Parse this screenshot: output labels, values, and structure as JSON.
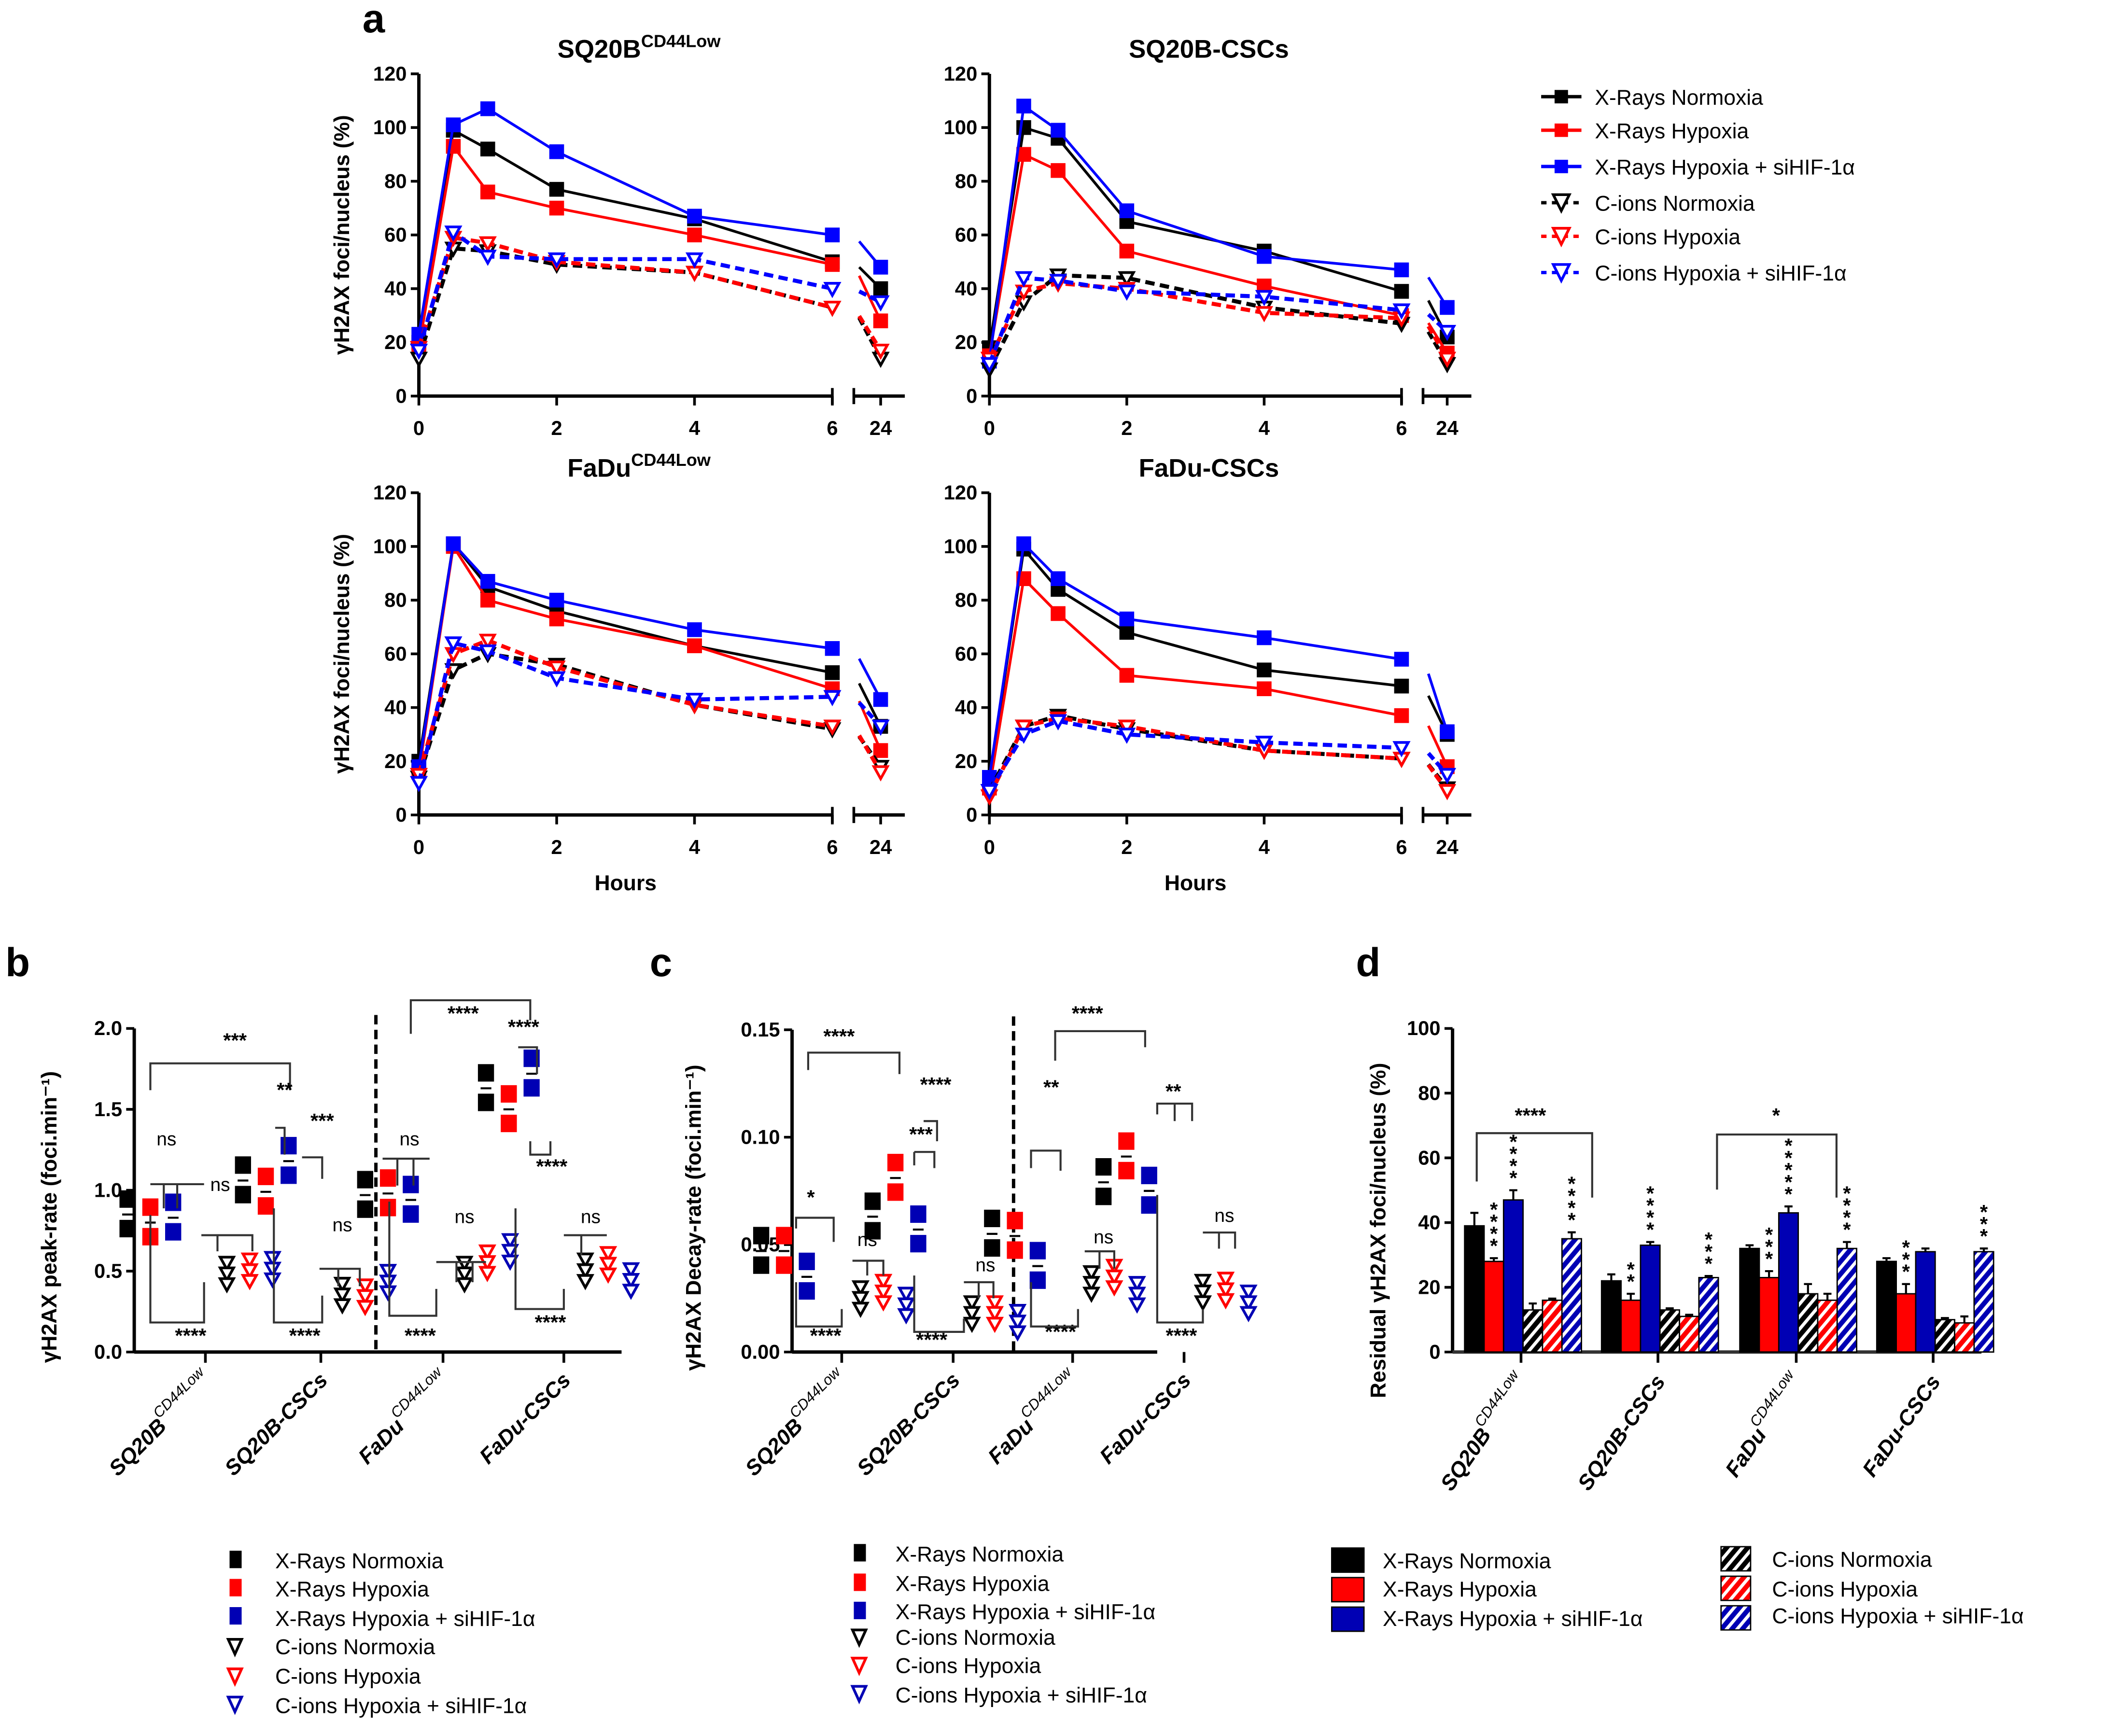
{
  "figure": {
    "panel_labels": [
      "a",
      "b",
      "c",
      "d"
    ],
    "colors": {
      "x_normoxia": "#000000",
      "x_hypoxia": "#ff0000",
      "x_sihif": "#0000ff",
      "c_normoxia": "#000000",
      "c_hypoxia": "#ff0000",
      "c_sihif": "#0000ff",
      "dot_blue": "#0000b4"
    }
  },
  "legend_a": [
    "X-Rays Normoxia",
    "X-Rays Hypoxia",
    "X-Rays Hypoxia + siHIF-1α",
    "C-ions Normoxia",
    "C-ions Hypoxia",
    "C-ions Hypoxia + siHIF-1α"
  ],
  "legend_b": [
    "X-Rays Normoxia",
    "X-Rays Hypoxia",
    "X-Rays Hypoxia + siHIF-1α",
    "C-ions Normoxia",
    "C-ions Hypoxia",
    "C-ions Hypoxia + siHIF-1α"
  ],
  "legend_c": [
    "X-Rays Normoxia",
    "X-Rays Hypoxia",
    "X-Rays Hypoxia + siHIF-1α",
    "C-ions Normoxia",
    "C-ions Hypoxia",
    "C-ions Hypoxia + siHIF-1α"
  ],
  "legend_d": [
    "X-Rays Normoxia",
    "X-Rays Hypoxia",
    "X-Rays Hypoxia + siHIF-1α",
    "C-ions Normoxia",
    "C-ions Hypoxia",
    "C-ions Hypoxia + siHIF-1α"
  ],
  "chart_data": [
    {
      "id": "a1",
      "type": "line",
      "title": "SQ20B",
      "title_sup": "CD44Low",
      "xlabel": "",
      "ylabel": "γH2AX foci/nucleus (%)",
      "x": [
        0,
        0.5,
        1,
        2,
        4,
        6,
        24
      ],
      "x_ticks": [
        "0",
        "2",
        "4",
        "6",
        "24"
      ],
      "ylim": [
        0,
        120
      ],
      "y_ticks": [
        0,
        20,
        40,
        60,
        80,
        100,
        120
      ],
      "x_axis_break": "between 6 and 24",
      "series": [
        {
          "name": "X-Rays Normoxia",
          "values": [
            20,
            99,
            92,
            77,
            66,
            50,
            40
          ]
        },
        {
          "name": "X-Rays Hypoxia",
          "values": [
            18,
            93,
            76,
            70,
            60,
            49,
            28
          ]
        },
        {
          "name": "X-Rays Hypoxia + siHIF-1α",
          "values": [
            23,
            101,
            107,
            91,
            67,
            60,
            48
          ]
        },
        {
          "name": "C-ions Normoxia",
          "values": [
            14,
            55,
            54,
            49,
            46,
            33,
            14
          ]
        },
        {
          "name": "C-ions Hypoxia",
          "values": [
            18,
            59,
            57,
            50,
            46,
            33,
            17
          ]
        },
        {
          "name": "C-ions Hypoxia + siHIF-1α",
          "values": [
            17,
            61,
            52,
            51,
            51,
            40,
            35
          ]
        }
      ]
    },
    {
      "id": "a2",
      "type": "line",
      "title": "SQ20B-CSCs",
      "title_sup": "",
      "xlabel": "",
      "ylabel": "",
      "x": [
        0,
        0.5,
        1,
        2,
        4,
        6,
        24
      ],
      "x_ticks": [
        "0",
        "2",
        "4",
        "6",
        "24"
      ],
      "ylim": [
        0,
        120
      ],
      "y_ticks": [
        0,
        20,
        40,
        60,
        80,
        100,
        120
      ],
      "x_axis_break": "between 6 and 24",
      "series": [
        {
          "name": "X-Rays Normoxia",
          "values": [
            18,
            100,
            96,
            65,
            54,
            39,
            22
          ]
        },
        {
          "name": "X-Rays Hypoxia",
          "values": [
            15,
            90,
            84,
            54,
            41,
            30,
            16
          ]
        },
        {
          "name": "X-Rays Hypoxia + siHIF-1α",
          "values": [
            13,
            108,
            99,
            69,
            52,
            47,
            33
          ]
        },
        {
          "name": "C-ions Normoxia",
          "values": [
            10,
            35,
            45,
            44,
            33,
            27,
            12
          ]
        },
        {
          "name": "C-ions Hypoxia",
          "values": [
            14,
            39,
            42,
            40,
            31,
            29,
            14
          ]
        },
        {
          "name": "C-ions Hypoxia + siHIF-1α",
          "values": [
            12,
            44,
            43,
            39,
            37,
            32,
            24
          ]
        }
      ]
    },
    {
      "id": "a3",
      "type": "line",
      "title": "FaDu",
      "title_sup": "CD44Low",
      "xlabel": "Hours",
      "ylabel": "γH2AX foci/nucleus (%)",
      "x": [
        0,
        0.5,
        1,
        2,
        4,
        6,
        24
      ],
      "x_ticks": [
        "0",
        "2",
        "4",
        "6",
        "24"
      ],
      "ylim": [
        0,
        120
      ],
      "y_ticks": [
        0,
        20,
        40,
        60,
        80,
        100,
        120
      ],
      "x_axis_break": "between 6 and 24",
      "series": [
        {
          "name": "X-Rays Normoxia",
          "values": [
            20,
            101,
            85,
            76,
            63,
            53,
            33
          ]
        },
        {
          "name": "X-Rays Hypoxia",
          "values": [
            16,
            100,
            80,
            73,
            63,
            47,
            24
          ]
        },
        {
          "name": "X-Rays Hypoxia + siHIF-1α",
          "values": [
            18,
            101,
            87,
            80,
            69,
            62,
            43
          ]
        },
        {
          "name": "C-ions Normoxia",
          "values": [
            14,
            54,
            60,
            56,
            41,
            32,
            18
          ]
        },
        {
          "name": "C-ions Hypoxia",
          "values": [
            15,
            60,
            65,
            55,
            41,
            33,
            16
          ]
        },
        {
          "name": "C-ions Hypoxia + siHIF-1α",
          "values": [
            12,
            64,
            61,
            51,
            43,
            44,
            33
          ]
        }
      ]
    },
    {
      "id": "a4",
      "type": "line",
      "title": "FaDu-CSCs",
      "title_sup": "",
      "xlabel": "Hours",
      "ylabel": "",
      "x": [
        0,
        0.5,
        1,
        2,
        4,
        6,
        24
      ],
      "x_ticks": [
        "0",
        "2",
        "4",
        "6",
        "24"
      ],
      "ylim": [
        0,
        120
      ],
      "y_ticks": [
        0,
        20,
        40,
        60,
        80,
        100,
        120
      ],
      "x_axis_break": "between 6 and 24",
      "series": [
        {
          "name": "X-Rays Normoxia",
          "values": [
            13,
            99,
            84,
            68,
            54,
            48,
            30
          ]
        },
        {
          "name": "X-Rays Hypoxia",
          "values": [
            10,
            88,
            75,
            52,
            47,
            37,
            18
          ]
        },
        {
          "name": "X-Rays Hypoxia + siHIF-1α",
          "values": [
            14,
            101,
            88,
            73,
            66,
            58,
            31
          ]
        },
        {
          "name": "C-ions Normoxia",
          "values": [
            9,
            33,
            37,
            32,
            24,
            21,
            10
          ]
        },
        {
          "name": "C-ions Hypoxia",
          "values": [
            7,
            33,
            36,
            33,
            24,
            21,
            9
          ]
        },
        {
          "name": "C-ions Hypoxia + siHIF-1α",
          "values": [
            9,
            30,
            35,
            30,
            27,
            25,
            15
          ]
        }
      ]
    },
    {
      "id": "b",
      "type": "scatter",
      "title": "",
      "ylabel": "γH2AX peak-rate (foci.min⁻¹)",
      "ylim": [
        0,
        2.0
      ],
      "y_ticks": [
        "0.0",
        "0.5",
        "1.0",
        "1.5",
        "2.0"
      ],
      "categories": [
        "SQ20B",
        "SQ20B-CSCs",
        "FaDu",
        "FaDu-CSCs"
      ],
      "category_sups": [
        "CD44Low",
        "",
        "CD44Low",
        ""
      ],
      "series": [
        {
          "name": "X-Rays Normoxia",
          "values": [
            0.85,
            1.06,
            0.97,
            1.63
          ]
        },
        {
          "name": "X-Rays Hypoxia",
          "values": [
            0.8,
            0.99,
            0.98,
            1.5
          ]
        },
        {
          "name": "X-Rays Hypoxia + siHIF-1α",
          "values": [
            0.83,
            1.18,
            0.94,
            1.72
          ]
        },
        {
          "name": "C-ions Normoxia",
          "values": [
            0.47,
            0.34,
            0.47,
            0.49
          ]
        },
        {
          "name": "C-ions Hypoxia",
          "values": [
            0.49,
            0.33,
            0.54,
            0.53
          ]
        },
        {
          "name": "C-ions Hypoxia + siHIF-1α",
          "values": [
            0.5,
            0.42,
            0.61,
            0.43
          ]
        }
      ],
      "significance": [
        {
          "label": "***",
          "compare": "SQ20B X-Rays Normoxia vs SQ20B-CSCs X-Rays Normoxia"
        },
        {
          "label": "ns",
          "compare": "SQ20B X-Rays groups"
        },
        {
          "label": "ns",
          "compare": "SQ20B C-ions groups"
        },
        {
          "label": "****",
          "compare": "SQ20B X-Rays vs C-ions"
        },
        {
          "label": "**",
          "compare": "SQ20B-CSCs Normoxia vs Hypoxia"
        },
        {
          "label": "***",
          "compare": "SQ20B-CSCs Hypoxia vs siHIF"
        },
        {
          "label": "ns",
          "compare": "SQ20B-CSCs C-ions groups"
        },
        {
          "label": "****",
          "compare": "SQ20B-CSCs X-Rays vs C-ions"
        },
        {
          "label": "****",
          "compare": "FaDu vs FaDu-CSCs X-Rays Normoxia"
        },
        {
          "label": "ns",
          "compare": "FaDu X-Rays groups"
        },
        {
          "label": "ns",
          "compare": "FaDu C-ions groups"
        },
        {
          "label": "****",
          "compare": "FaDu X-Rays vs C-ions"
        },
        {
          "label": "****",
          "compare": "FaDu-CSCs Normoxia vs Hypoxia"
        },
        {
          "label": "****",
          "compare": "FaDu-CSCs Hypoxia vs siHIF"
        },
        {
          "label": "ns",
          "compare": "FaDu-CSCs C-ions groups"
        },
        {
          "label": "****",
          "compare": "FaDu-CSCs X-Rays vs C-ions"
        }
      ]
    },
    {
      "id": "c",
      "type": "scatter",
      "title": "",
      "ylabel": "γH2AX Decay-rate (foci.min⁻¹)",
      "ylim": [
        0,
        0.15
      ],
      "y_ticks": [
        "0.00",
        "0.05",
        "0.10",
        "0.15"
      ],
      "categories": [
        "SQ20B",
        "SQ20B-CSCs",
        "FaDu",
        "FaDu-CSCs"
      ],
      "category_sups": [
        "CD44Low",
        "",
        "CD44Low",
        ""
      ],
      "series": [
        {
          "name": "X-Rays Normoxia",
          "values": [
            0.047,
            0.063,
            0.055,
            0.079
          ]
        },
        {
          "name": "X-Rays Hypoxia",
          "values": [
            0.047,
            0.081,
            0.054,
            0.091
          ]
        },
        {
          "name": "X-Rays Hypoxia + siHIF-1α",
          "values": [
            0.035,
            0.057,
            0.04,
            0.075
          ]
        },
        {
          "name": "C-ions Normoxia",
          "values": [
            0.024,
            0.017,
            0.031,
            0.027
          ]
        },
        {
          "name": "C-ions Hypoxia",
          "values": [
            0.027,
            0.017,
            0.034,
            0.028
          ]
        },
        {
          "name": "C-ions Hypoxia + siHIF-1α",
          "values": [
            0.021,
            0.013,
            0.026,
            0.022
          ]
        }
      ],
      "significance": [
        {
          "label": "****",
          "compare": "SQ20B vs SQ20B-CSCs X-Rays Normoxia"
        },
        {
          "label": "*",
          "compare": "SQ20B Normoxia vs siHIF"
        },
        {
          "label": "ns",
          "compare": "SQ20B C-ions groups"
        },
        {
          "label": "****",
          "compare": "SQ20B X-Rays vs C-ions"
        },
        {
          "label": "***",
          "compare": "SQ20B-CSCs Normoxia vs Hypoxia"
        },
        {
          "label": "****",
          "compare": "SQ20B-CSCs Hypoxia vs siHIF"
        },
        {
          "label": "ns",
          "compare": "SQ20B-CSCs C-ions groups"
        },
        {
          "label": "****",
          "compare": "SQ20B-CSCs X-Rays vs C-ions"
        },
        {
          "label": "****",
          "compare": "FaDu vs FaDu-CSCs X-Rays Normoxia"
        },
        {
          "label": "**",
          "compare": "FaDu Normoxia vs siHIF"
        },
        {
          "label": "ns",
          "compare": "FaDu C-ions groups"
        },
        {
          "label": "****",
          "compare": "FaDu X-Rays vs C-ions"
        },
        {
          "label": "**",
          "compare": "FaDu-CSCs X-Rays groups"
        },
        {
          "label": "ns",
          "compare": "FaDu-CSCs C-ions groups"
        },
        {
          "label": "****",
          "compare": "FaDu-CSCs X-Rays vs C-ions"
        }
      ]
    },
    {
      "id": "d",
      "type": "bar",
      "title": "",
      "ylabel": "Residual γH2AX foci/nucleus (%)",
      "ylim": [
        0,
        100
      ],
      "y_ticks": [
        0,
        20,
        40,
        60,
        80,
        100
      ],
      "categories": [
        "SQ20B",
        "SQ20B-CSCs",
        "FaDu",
        "FaDu-CSCs"
      ],
      "category_sups": [
        "CD44Low",
        "",
        "CD44Low",
        ""
      ],
      "series": [
        {
          "name": "X-Rays Normoxia",
          "pattern": "solid",
          "values": [
            39,
            22,
            32,
            28
          ],
          "errors": [
            4,
            2,
            1,
            1
          ]
        },
        {
          "name": "X-Rays Hypoxia",
          "pattern": "solid",
          "values": [
            28,
            16,
            23,
            18
          ],
          "errors": [
            1,
            2,
            2,
            3
          ]
        },
        {
          "name": "X-Rays Hypoxia + siHIF-1α",
          "pattern": "solid",
          "values": [
            47,
            33,
            43,
            31
          ],
          "errors": [
            3,
            1,
            2,
            1
          ]
        },
        {
          "name": "C-ions Normoxia",
          "pattern": "hatched",
          "values": [
            13,
            13,
            18,
            10
          ],
          "errors": [
            2,
            0.5,
            3,
            0.5
          ]
        },
        {
          "name": "C-ions Hypoxia",
          "pattern": "hatched",
          "values": [
            16,
            11,
            16,
            9
          ],
          "errors": [
            0.5,
            0.5,
            2,
            2
          ]
        },
        {
          "name": "C-ions Hypoxia + siHIF-1α",
          "pattern": "hatched",
          "values": [
            35,
            23,
            32,
            31
          ],
          "errors": [
            2,
            0.5,
            2,
            1
          ]
        }
      ],
      "bar_stars": [
        [
          "",
          "****",
          "****",
          "",
          "",
          "****"
        ],
        [
          "",
          "**",
          "****",
          "",
          "",
          "***"
        ],
        [
          "",
          "***",
          "*****",
          "",
          "",
          "****"
        ],
        [
          "",
          "***",
          "",
          "",
          "",
          "***"
        ]
      ],
      "significance": [
        {
          "label": "****",
          "compare": "SQ20B vs SQ20B-CSCs X-Rays Normoxia"
        },
        {
          "label": "*",
          "compare": "FaDu vs FaDu-CSCs X-Rays Normoxia"
        }
      ]
    }
  ]
}
